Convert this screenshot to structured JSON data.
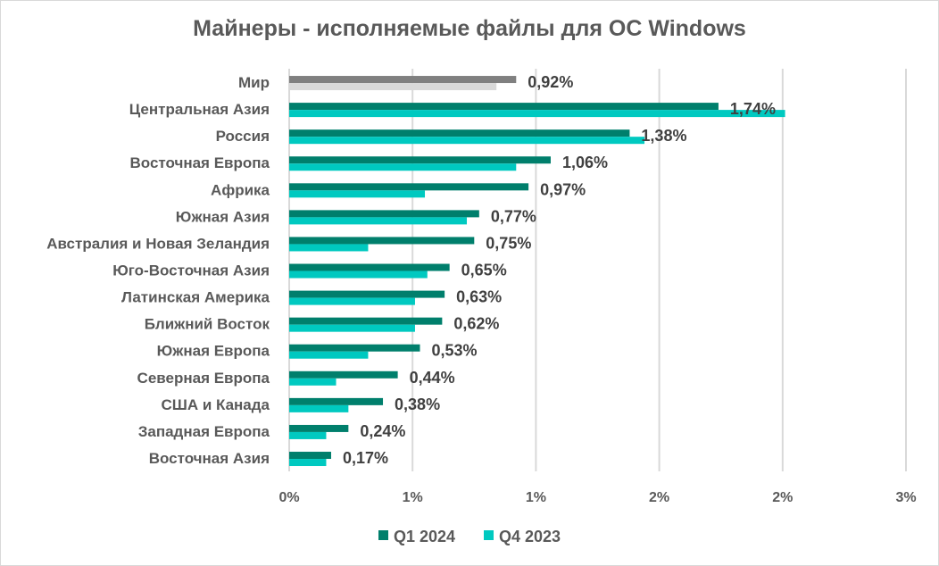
{
  "chart_data": {
    "type": "bar",
    "orientation": "horizontal",
    "title": "Майнеры - исполняемые файлы для ОС Windows",
    "categories": [
      "Мир",
      "Центральная Азия",
      "Россия",
      "Восточная Европа",
      "Африка",
      "Южная Азия",
      "Австралия и Новая Зеландия",
      "Юго-Восточная Азия",
      "Латинская Америка",
      "Ближний Восток",
      "Южная Европа",
      "Северная Европа",
      "США и Канада",
      "Западная Европа",
      "Восточная Азия"
    ],
    "series": [
      {
        "name": "Q1 2024",
        "color": "#007f6c",
        "highlight_color": "#808080",
        "values": [
          0.92,
          1.74,
          1.38,
          1.06,
          0.97,
          0.77,
          0.75,
          0.65,
          0.63,
          0.62,
          0.53,
          0.44,
          0.38,
          0.24,
          0.17
        ]
      },
      {
        "name": "Q4 2023",
        "color": "#00c9c0",
        "highlight_color": "#d9d9d9",
        "values": [
          0.84,
          2.01,
          1.44,
          0.92,
          0.55,
          0.72,
          0.32,
          0.56,
          0.51,
          0.51,
          0.32,
          0.19,
          0.24,
          0.15,
          0.15
        ]
      }
    ],
    "data_labels": [
      "0,92%",
      "1,74%",
      "1,38%",
      "1,06%",
      "0,97%",
      "0,77%",
      "0,75%",
      "0,65%",
      "0,63%",
      "0,62%",
      "0,53%",
      "0,44%",
      "0,38%",
      "0,24%",
      "0,17%"
    ],
    "xlim": [
      0,
      2.5
    ],
    "xticks": [
      0,
      0.5,
      1,
      1.5,
      2,
      2.5
    ],
    "xtick_labels": [
      "0%",
      "1%",
      "1%",
      "2%",
      "2%",
      "3%"
    ],
    "xlabel": "",
    "ylabel": "",
    "grid": true,
    "legend_position": "bottom"
  }
}
